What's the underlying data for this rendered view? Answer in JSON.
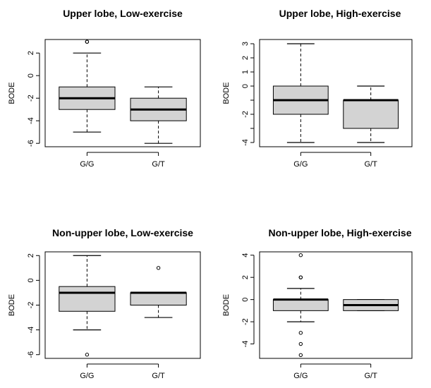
{
  "chart_data": [
    {
      "type": "boxplot",
      "title": "Upper lobe, Low-exercise",
      "ylabel": "BODE",
      "categories": [
        "G/G",
        "G/T"
      ],
      "ylim": [
        -6.3,
        3.2
      ],
      "yticks": [
        -6,
        -4,
        -2,
        0,
        2
      ],
      "boxes": [
        {
          "category": "G/G",
          "whisker_low": -5,
          "q1": -3,
          "median": -2,
          "q3": -1,
          "whisker_high": 2,
          "outliers": [
            3,
            3
          ]
        },
        {
          "category": "G/T",
          "whisker_low": -6,
          "q1": -4,
          "median": -3,
          "q3": -2,
          "whisker_high": -1,
          "outliers": []
        }
      ]
    },
    {
      "type": "boxplot",
      "title": "Upper lobe, High-exercise",
      "ylabel": "BODE",
      "categories": [
        "G/G",
        "G/T"
      ],
      "ylim": [
        -4.3,
        3.3
      ],
      "yticks": [
        -4,
        -3,
        -2,
        -1,
        0,
        1,
        2,
        3
      ],
      "ytick_labels": [
        "-4",
        "",
        "-2",
        "",
        "0",
        "1",
        "2",
        "3"
      ],
      "boxes": [
        {
          "category": "G/G",
          "whisker_low": -4,
          "q1": -2,
          "median": -1,
          "q3": 0,
          "whisker_high": 3,
          "outliers": []
        },
        {
          "category": "G/T",
          "whisker_low": -4,
          "q1": -3,
          "median": -1,
          "q3": -1,
          "whisker_high": 0,
          "outliers": []
        }
      ]
    },
    {
      "type": "boxplot",
      "title": "Non-upper lobe, Low-exercise",
      "ylabel": "BODE",
      "categories": [
        "G/G",
        "G/T"
      ],
      "ylim": [
        -6.3,
        2.3
      ],
      "yticks": [
        -6,
        -4,
        -2,
        0,
        2
      ],
      "boxes": [
        {
          "category": "G/G",
          "whisker_low": -4,
          "q1": -2.5,
          "median": -1,
          "q3": -0.5,
          "whisker_high": 2,
          "outliers": [
            -6
          ]
        },
        {
          "category": "G/T",
          "whisker_low": -3,
          "q1": -2,
          "median": -1,
          "q3": -1,
          "whisker_high": -1,
          "outliers": [
            1
          ]
        }
      ]
    },
    {
      "type": "boxplot",
      "title": "Non-upper lobe, High-exercise",
      "ylabel": "BODE",
      "categories": [
        "G/G",
        "G/T"
      ],
      "ylim": [
        -5.3,
        4.3
      ],
      "yticks": [
        -4,
        -2,
        0,
        2,
        4
      ],
      "boxes": [
        {
          "category": "G/G",
          "whisker_low": -2,
          "q1": -1,
          "median": 0,
          "q3": 0,
          "whisker_high": 1,
          "outliers": [
            -3,
            -4,
            -5,
            2,
            2,
            4
          ]
        },
        {
          "category": "G/T",
          "whisker_low": -1,
          "q1": -1,
          "median": -0.5,
          "q3": 0,
          "whisker_high": 0,
          "outliers": []
        }
      ]
    }
  ],
  "colors": {
    "box_fill": "#d3d3d3",
    "line": "#000000"
  }
}
